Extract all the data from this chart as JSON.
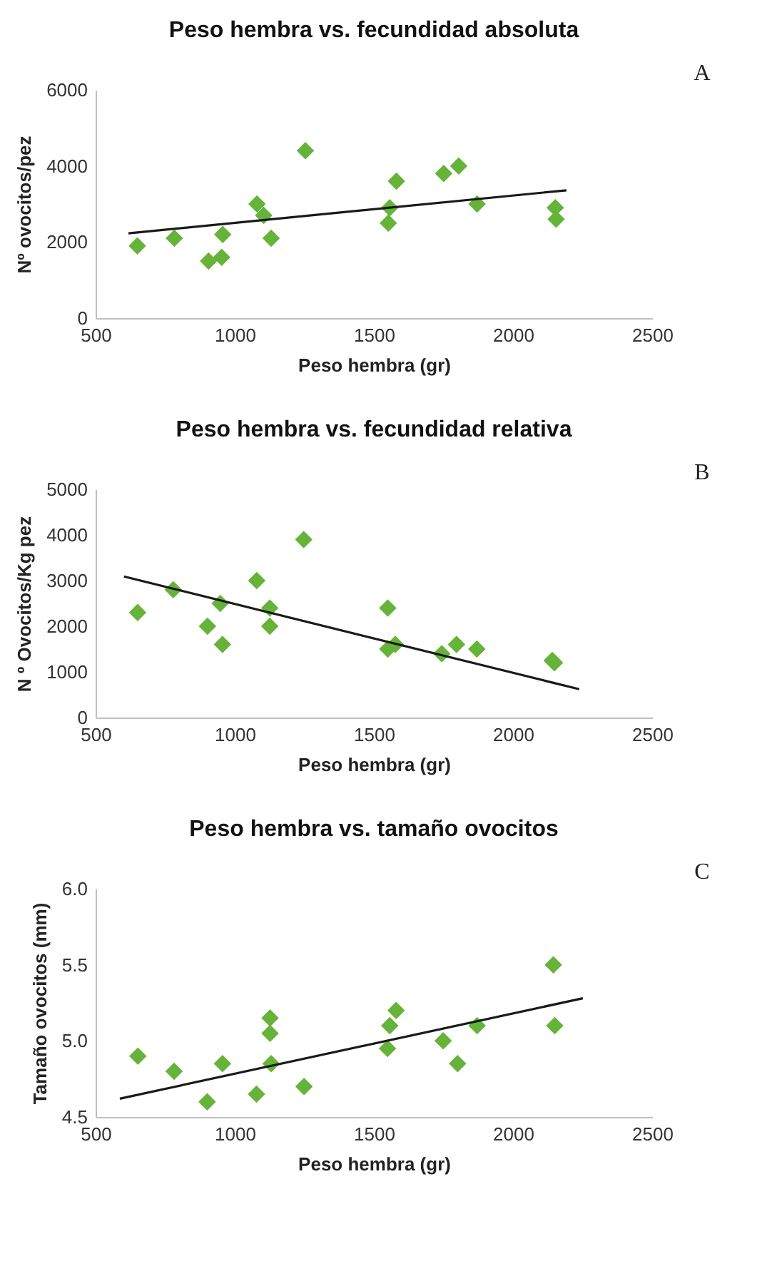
{
  "chart_data": [
    {
      "type": "scatter",
      "title": "Peso hembra vs. fecundidad absoluta",
      "xlabel": "Peso hembra (gr)",
      "ylabel": "Nº ovocitos/pez",
      "marker": "diamond",
      "grid": false,
      "xlim": [
        500,
        2500
      ],
      "xticks": [
        500,
        1000,
        1500,
        2000,
        2500
      ],
      "ylim": [
        0,
        6000
      ],
      "yticks": [
        0,
        2000,
        4000,
        6000
      ],
      "annotations": [
        "A"
      ],
      "series": [
        {
          "type": "scatter",
          "color": "#66b33a",
          "x": [
            650,
            783,
            906,
            953,
            957,
            1080,
            1104,
            1131,
            1254,
            1552,
            1557,
            1581,
            1751,
            1805,
            1871,
            2152,
            2155
          ],
          "values": [
            1900,
            2100,
            1500,
            1600,
            2200,
            3000,
            2700,
            2100,
            4400,
            2500,
            2900,
            3600,
            3800,
            4000,
            3000,
            2900,
            2600
          ]
        },
        {
          "type": "line",
          "marker": "none",
          "color": "#1a1a1a",
          "x": [
            618,
            2192
          ],
          "values": [
            2230,
            3360
          ]
        }
      ]
    },
    {
      "type": "scatter",
      "title": "Peso hembra vs. fecundidad relativa",
      "xlabel": "Peso hembra (gr)",
      "ylabel": "N º Ovocitos/Kg pez",
      "marker": "diamond",
      "grid": false,
      "xlim": [
        500,
        2500
      ],
      "xticks": [
        500,
        1000,
        1500,
        2000,
        2500
      ],
      "ylim": [
        0,
        5000
      ],
      "yticks": [
        0,
        1000,
        2000,
        3000,
        4000,
        5000
      ],
      "annotations": [
        "B"
      ],
      "series": [
        {
          "type": "scatter",
          "color": "#66b33a",
          "x": [
            651,
            779,
            902,
            948,
            956,
            1079,
            1126,
            1126,
            1248,
            1550,
            1550,
            1577,
            1744,
            1797,
            1870,
            2141,
            2149
          ],
          "values": [
            2300,
            2800,
            2000,
            2500,
            1600,
            3000,
            2400,
            2000,
            3900,
            2400,
            1500,
            1600,
            1400,
            1600,
            1500,
            1250,
            1200
          ]
        },
        {
          "type": "line",
          "marker": "none",
          "color": "#1a1a1a",
          "x": [
            602,
            2238
          ],
          "values": [
            3090,
            620
          ]
        }
      ]
    },
    {
      "type": "scatter",
      "title": "Peso hembra vs. tamaño ovocitos",
      "xlabel": "Peso hembra (gr)",
      "ylabel": "Tamaño ovocitos (mm)",
      "marker": "diamond",
      "grid": false,
      "xlim": [
        500,
        2500
      ],
      "xticks": [
        500,
        1000,
        1500,
        2000,
        2500
      ],
      "ylim": [
        4.5,
        6.0
      ],
      "yticks": [
        4.5,
        {
          "value": 5,
          "label": "5.0"
        },
        5.5,
        {
          "value": 6,
          "label": "6.0"
        }
      ],
      "annotations": [
        "C"
      ],
      "series": [
        {
          "type": "scatter",
          "color": "#66b33a",
          "x": [
            652,
            782,
            901,
            956,
            1078,
            1127,
            1127,
            1131,
            1249,
            1549,
            1557,
            1580,
            1749,
            1801,
            1871,
            2145,
            2150
          ],
          "values": [
            4.9,
            4.8,
            4.6,
            4.85,
            4.65,
            5.15,
            5.05,
            4.85,
            4.7,
            4.95,
            5.1,
            5.2,
            5.0,
            4.85,
            5.1,
            5.5,
            5.1
          ]
        },
        {
          "type": "line",
          "marker": "none",
          "color": "#1a1a1a",
          "x": [
            587,
            2251
          ],
          "values": [
            4.62,
            5.28
          ]
        }
      ]
    }
  ]
}
